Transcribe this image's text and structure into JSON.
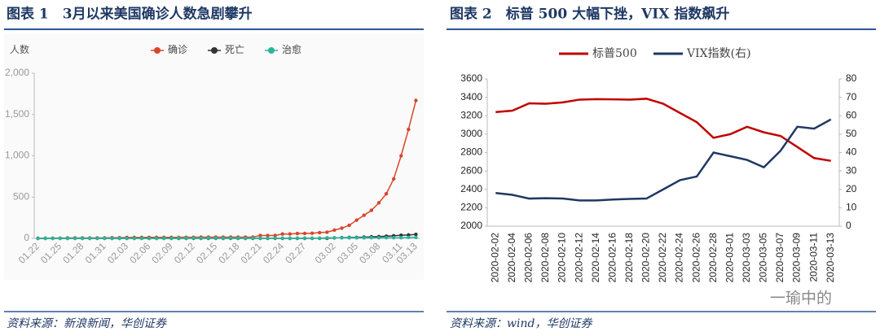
{
  "chart_data": [
    {
      "type": "line",
      "markers": true,
      "grid": false,
      "title": "图表 1　3月以来美国确诊人数急剧攀升",
      "ylabel": "人数",
      "source": "资料来源：新浪新闻，华创证券",
      "categories": [
        "01.22",
        null,
        null,
        "01.25",
        null,
        null,
        "01.28",
        null,
        null,
        "01.31",
        null,
        null,
        "02.03",
        null,
        null,
        "02.06",
        null,
        null,
        "02.09",
        null,
        null,
        "02.12",
        null,
        null,
        "02.15",
        null,
        null,
        "02.18",
        null,
        null,
        "02.21",
        null,
        null,
        "02.24",
        null,
        null,
        "02.27",
        null,
        null,
        null,
        "03.02",
        null,
        null,
        "03.05",
        null,
        null,
        "03.08",
        null,
        null,
        "03.11",
        null,
        "03.13"
      ],
      "ylim": [
        0,
        2000
      ],
      "yticks": [
        0,
        500,
        {
          "value": 1000,
          "label": "1,000"
        },
        {
          "value": 1500,
          "label": "1,500"
        },
        {
          "value": 2000,
          "label": "2,000"
        }
      ],
      "series": [
        {
          "name": "确诊",
          "color": "#d9452b",
          "values": [
            1,
            1,
            2,
            2,
            5,
            5,
            5,
            5,
            5,
            6,
            8,
            8,
            11,
            11,
            11,
            12,
            12,
            12,
            12,
            12,
            13,
            13,
            15,
            15,
            15,
            15,
            15,
            15,
            15,
            15,
            35,
            35,
            35,
            53,
            53,
            59,
            60,
            62,
            70,
            75,
            100,
            124,
            158,
            221,
            280,
            340,
            430,
            540,
            720,
            1000,
            1320,
            1670
          ]
        },
        {
          "name": "死亡",
          "color": "#333333",
          "values": [
            0,
            0,
            0,
            0,
            0,
            0,
            0,
            0,
            0,
            0,
            0,
            0,
            0,
            0,
            0,
            0,
            0,
            0,
            0,
            0,
            0,
            0,
            0,
            0,
            0,
            0,
            0,
            0,
            0,
            0,
            0,
            0,
            0,
            0,
            0,
            0,
            0,
            0,
            1,
            1,
            6,
            9,
            11,
            12,
            15,
            19,
            22,
            26,
            31,
            38,
            41,
            48
          ]
        },
        {
          "name": "治愈",
          "color": "#2bb59a",
          "values": [
            0,
            0,
            0,
            0,
            0,
            0,
            0,
            0,
            0,
            0,
            0,
            0,
            0,
            0,
            0,
            0,
            0,
            0,
            0,
            3,
            3,
            3,
            3,
            3,
            3,
            3,
            3,
            3,
            3,
            3,
            3,
            3,
            3,
            3,
            3,
            3,
            3,
            3,
            3,
            7,
            7,
            7,
            7,
            7,
            7,
            8,
            8,
            8,
            8,
            8,
            12,
            12
          ]
        }
      ]
    },
    {
      "type": "line",
      "markers": false,
      "grid": false,
      "title": "图表 2　标普 500 大幅下挫，VIX 指数飙升",
      "source": "资料来源：wind，华创证券",
      "categories": [
        "2020-02-02",
        "2020-02-04",
        "2020-02-06",
        "2020-02-08",
        "2020-02-10",
        "2020-02-12",
        "2020-02-14",
        "2020-02-16",
        "2020-02-18",
        "2020-02-20",
        "2020-02-22",
        "2020-02-24",
        "2020-02-26",
        "2020-02-28",
        "2020-03-01",
        "2020-03-03",
        "2020-03-05",
        "2020-03-07",
        "2020-03-09",
        "2020-03-11",
        "2020-03-13"
      ],
      "ylim": [
        2000,
        3600
      ],
      "yticks": [
        2000,
        2200,
        2400,
        2600,
        2800,
        3000,
        3200,
        3400,
        3600
      ],
      "y2lim": [
        0,
        80
      ],
      "y2ticks": [
        0,
        10,
        20,
        30,
        40,
        50,
        60,
        70,
        80
      ],
      "series": [
        {
          "name": "标普500",
          "color": "#c00000",
          "values": [
            3240,
            3255,
            3335,
            3330,
            3345,
            3375,
            3380,
            3378,
            3375,
            3385,
            3330,
            3230,
            3130,
            2960,
            3000,
            3080,
            3020,
            2980,
            2860,
            2740,
            2710
          ]
        },
        {
          "name": "VIX指数(右)",
          "color": "#1f3864",
          "axis": "y2",
          "values": [
            18,
            17,
            15,
            15.2,
            15,
            14,
            14,
            14.5,
            14.8,
            15,
            20,
            25,
            27,
            40,
            38,
            36,
            32,
            41,
            54,
            53,
            58
          ]
        }
      ]
    }
  ],
  "watermark": "一瑜中的"
}
